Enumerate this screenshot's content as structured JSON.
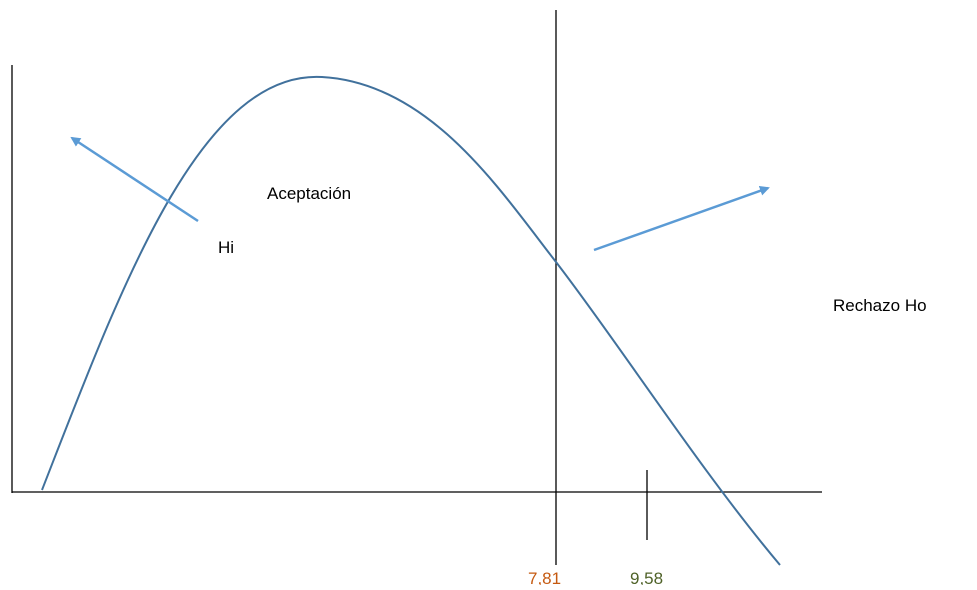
{
  "labels": {
    "acceptance": "Aceptación",
    "alternative": "Hi",
    "rejection": "Rechazo Ho",
    "critical_value": "7,81",
    "statistic_value": "9,58"
  }
}
